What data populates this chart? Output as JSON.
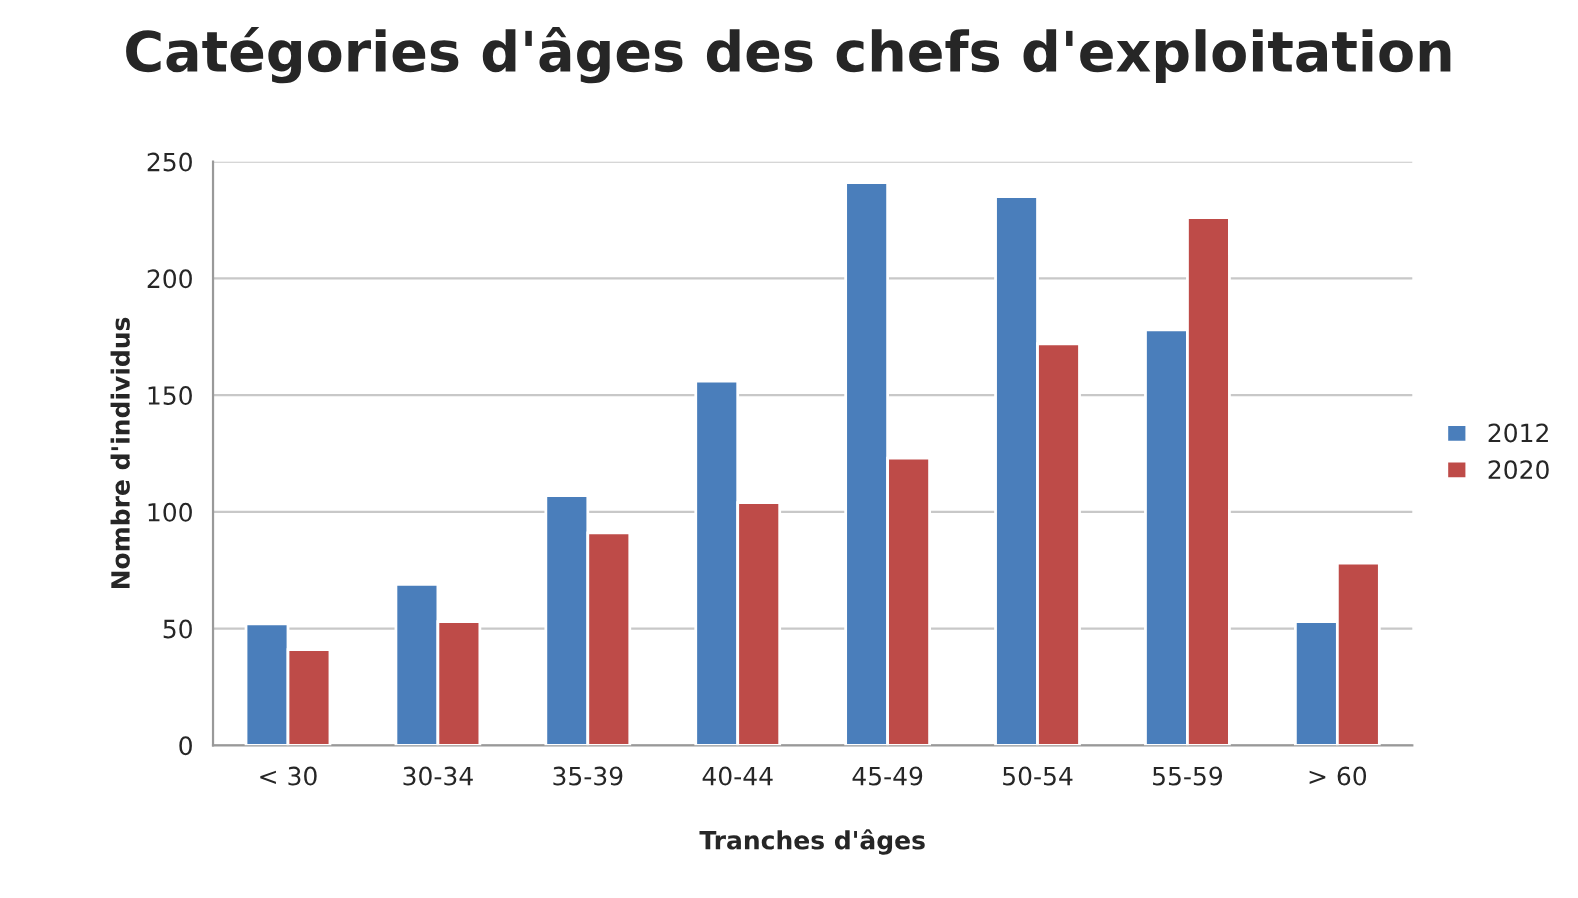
{
  "chart_data": {
    "type": "bar",
    "title": "Catégories d'âges des chefs d'exploitation",
    "xlabel": "Tranches d'âges",
    "ylabel": "Nombre d'individus",
    "categories": [
      "< 30",
      "30-34",
      "35-39",
      "40-44",
      "45-49",
      "50-54",
      "55-59",
      "> 60"
    ],
    "series": [
      {
        "name": "2012",
        "color": "#4a7ebb",
        "values": [
          52,
          69,
          107,
          156,
          241,
          235,
          178,
          53
        ]
      },
      {
        "name": "2020",
        "color": "#be4b48",
        "values": [
          41,
          53,
          91,
          104,
          123,
          172,
          226,
          78
        ]
      }
    ],
    "ylim": [
      0,
      250
    ],
    "yticks": [
      0,
      50,
      100,
      150,
      200,
      250
    ],
    "grid": "y",
    "legend": "right"
  }
}
